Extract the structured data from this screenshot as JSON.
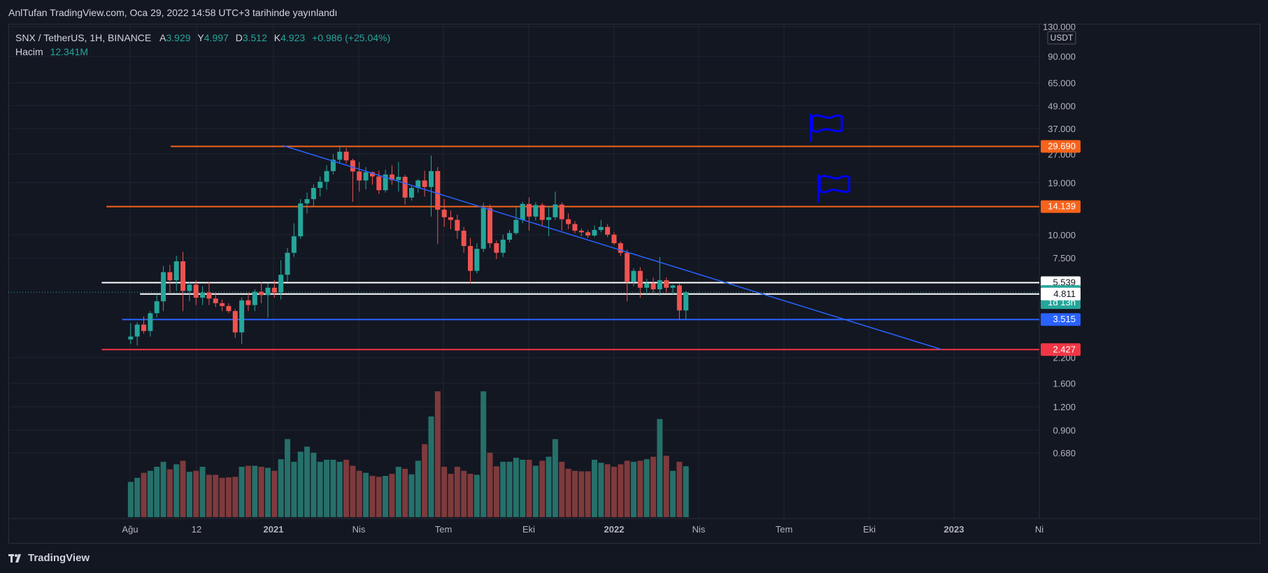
{
  "header": {
    "publish_line": "AnlTufan TradingView.com, Oca 29, 2022 14:58 UTC+3 tarihinde yayınlandı"
  },
  "legend": {
    "symbol": "SNX / TetherUS, 1H, BINANCE",
    "open_label": "A",
    "open": "3.929",
    "high_label": "Y",
    "high": "4.997",
    "low_label": "D",
    "low": "3.512",
    "close_label": "K",
    "close": "4.923",
    "change": "+0.986 (+25.04%)",
    "volume_label": "Hacim",
    "volume": "12.341M"
  },
  "branding": {
    "name": "TradingView"
  },
  "colors": {
    "background": "#131722",
    "grid": "#1f2430",
    "up": "#26a69a",
    "down": "#ef5350",
    "up_volume": "#26706a",
    "down_volume": "#7e3a3c",
    "orange_line": "#f7631b",
    "blue_line": "#2962ff",
    "red_line": "#f23645",
    "white_line": "#ffffff",
    "flag": "#0000ff"
  },
  "icons": [
    "flag-icon",
    "tradingview-logo-icon"
  ],
  "chart_data": {
    "type": "candlestick",
    "symbol": "SNX / TetherUS",
    "interval": "1H",
    "exchange": "BINANCE",
    "currency": "USDT",
    "y_scale": "log",
    "ylim": [
      0.68,
      130
    ],
    "grid": true,
    "price_axis_ticks": [
      "130.000",
      "90.000",
      "65.000",
      "49.000",
      "37.000",
      "27.000",
      "19.000",
      "10.000",
      "7.500",
      "5.539",
      "4.811",
      "2.200",
      "1.600",
      "1.200",
      "0.900",
      "0.680"
    ],
    "time_axis_ticks": [
      "Ağu",
      "12",
      "2021",
      "Nis",
      "Tem",
      "Eki",
      "2022",
      "Nis",
      "Tem",
      "Eki",
      "2023",
      "Ni"
    ],
    "price_labels": [
      {
        "text": "29.690",
        "value": 29.69,
        "color": "#f7631b",
        "text_color": "#ffffff"
      },
      {
        "text": "14.139",
        "value": 14.139,
        "color": "#f7631b",
        "text_color": "#ffffff"
      },
      {
        "text": "5.539",
        "value": 5.539,
        "color": "#ffffff",
        "text_color": "#131722"
      },
      {
        "text": "4.923",
        "value": 4.923,
        "color": "#26a69a",
        "text_color": "#ffffff",
        "sub": "1d 13h"
      },
      {
        "text": "4.811",
        "value": 4.811,
        "color": "#ffffff",
        "text_color": "#131722"
      },
      {
        "text": "3.515",
        "value": 3.515,
        "color": "#2962ff",
        "text_color": "#ffffff"
      },
      {
        "text": "2.427",
        "value": 2.427,
        "color": "#f23645",
        "text_color": "#ffffff"
      }
    ],
    "horizontal_lines": [
      {
        "name": "resistance-29690",
        "value": 29.69,
        "color": "#f7631b",
        "from_date": "2020-09-13"
      },
      {
        "name": "resistance-14139",
        "value": 14.139,
        "color": "#f7631b",
        "from_date": "2020-07-06"
      },
      {
        "name": "level-5539",
        "value": 5.539,
        "color": "#ffffff",
        "from_date": "2020-07-01"
      },
      {
        "name": "level-4811",
        "value": 4.811,
        "color": "#ffffff",
        "from_date": "2020-08-11"
      },
      {
        "name": "support-3515",
        "value": 3.515,
        "color": "#2962ff",
        "from_date": "2020-07-23"
      },
      {
        "name": "support-2427",
        "value": 2.427,
        "color": "#f23645",
        "from_date": "2020-07-01"
      }
    ],
    "trendline": {
      "from": [
        "2021-01-11",
        30.0
      ],
      "to": [
        "2022-12-18",
        2.43
      ],
      "color": "#2962ff"
    },
    "flags": [
      {
        "date": "2022-07-31",
        "value": 38.0
      },
      {
        "date": "2022-08-08",
        "value": 18.0
      }
    ],
    "candles": [
      {
        "date": "2020-08-01",
        "open": 2.75,
        "high": 3.35,
        "low": 2.6,
        "close": 2.85,
        "volume": 0.7
      },
      {
        "date": "2020-08-08",
        "open": 2.85,
        "high": 3.4,
        "low": 2.55,
        "close": 3.3,
        "volume": 0.78
      },
      {
        "date": "2020-08-15",
        "open": 3.3,
        "high": 3.65,
        "low": 2.95,
        "close": 3.05,
        "volume": 0.88
      },
      {
        "date": "2020-08-22",
        "open": 3.05,
        "high": 3.9,
        "low": 2.85,
        "close": 3.8,
        "volume": 0.92
      },
      {
        "date": "2020-08-29",
        "open": 3.8,
        "high": 4.8,
        "low": 3.6,
        "close": 4.4,
        "volume": 1.0
      },
      {
        "date": "2020-09-05",
        "open": 4.4,
        "high": 6.8,
        "low": 3.9,
        "close": 6.3,
        "volume": 1.1
      },
      {
        "date": "2020-09-12",
        "open": 6.3,
        "high": 6.9,
        "low": 4.9,
        "close": 5.7,
        "volume": 0.95
      },
      {
        "date": "2020-09-19",
        "open": 5.7,
        "high": 7.7,
        "low": 5.0,
        "close": 7.2,
        "volume": 1.05
      },
      {
        "date": "2020-09-26",
        "open": 7.2,
        "high": 8.1,
        "low": 3.9,
        "close": 5.0,
        "volume": 1.12
      },
      {
        "date": "2020-10-03",
        "open": 5.0,
        "high": 5.6,
        "low": 4.4,
        "close": 5.4,
        "volume": 0.9
      },
      {
        "date": "2020-10-10",
        "open": 5.4,
        "high": 5.7,
        "low": 4.2,
        "close": 4.6,
        "volume": 0.92
      },
      {
        "date": "2020-10-17",
        "open": 4.6,
        "high": 5.3,
        "low": 4.2,
        "close": 4.9,
        "volume": 1.0
      },
      {
        "date": "2020-10-24",
        "open": 4.9,
        "high": 5.6,
        "low": 4.2,
        "close": 4.55,
        "volume": 0.84
      },
      {
        "date": "2020-10-31",
        "open": 4.55,
        "high": 4.9,
        "low": 4.1,
        "close": 4.3,
        "volume": 0.84
      },
      {
        "date": "2020-11-07",
        "open": 4.3,
        "high": 4.5,
        "low": 3.9,
        "close": 4.15,
        "volume": 0.78
      },
      {
        "date": "2020-11-14",
        "open": 4.15,
        "high": 4.3,
        "low": 3.8,
        "close": 3.9,
        "volume": 0.79
      },
      {
        "date": "2020-11-21",
        "open": 3.9,
        "high": 4.0,
        "low": 2.8,
        "close": 3.0,
        "volume": 0.8
      },
      {
        "date": "2020-11-28",
        "open": 3.0,
        "high": 4.6,
        "low": 2.6,
        "close": 4.45,
        "volume": 1.0
      },
      {
        "date": "2020-12-05",
        "open": 4.45,
        "high": 4.9,
        "low": 3.9,
        "close": 4.2,
        "volume": 1.02
      },
      {
        "date": "2020-12-12",
        "open": 4.2,
        "high": 5.1,
        "low": 3.9,
        "close": 4.95,
        "volume": 1.02
      },
      {
        "date": "2020-12-19",
        "open": 4.95,
        "high": 5.6,
        "low": 4.3,
        "close": 4.75,
        "volume": 1.0
      },
      {
        "date": "2020-12-26",
        "open": 4.75,
        "high": 5.5,
        "low": 3.6,
        "close": 5.2,
        "volume": 0.98
      },
      {
        "date": "2021-01-02",
        "open": 5.2,
        "high": 5.7,
        "low": 4.6,
        "close": 4.9,
        "volume": 0.92
      },
      {
        "date": "2021-01-09",
        "open": 4.9,
        "high": 7.3,
        "low": 4.5,
        "close": 6.1,
        "volume": 1.15
      },
      {
        "date": "2021-01-16",
        "open": 6.1,
        "high": 8.5,
        "low": 5.6,
        "close": 8.0,
        "volume": 1.55
      },
      {
        "date": "2021-01-23",
        "open": 8.0,
        "high": 11.5,
        "low": 7.6,
        "close": 9.8,
        "volume": 1.1
      },
      {
        "date": "2021-01-30",
        "open": 9.8,
        "high": 15.5,
        "low": 9.5,
        "close": 14.7,
        "volume": 1.3
      },
      {
        "date": "2021-02-06",
        "open": 14.7,
        "high": 16.8,
        "low": 13.0,
        "close": 15.5,
        "volume": 1.4
      },
      {
        "date": "2021-02-13",
        "open": 15.5,
        "high": 18.6,
        "low": 14.2,
        "close": 17.8,
        "volume": 1.28
      },
      {
        "date": "2021-02-20",
        "open": 17.8,
        "high": 20.5,
        "low": 16.0,
        "close": 19.2,
        "volume": 1.1
      },
      {
        "date": "2021-02-27",
        "open": 19.2,
        "high": 23.5,
        "low": 17.4,
        "close": 21.9,
        "volume": 1.14
      },
      {
        "date": "2021-03-06",
        "open": 21.9,
        "high": 27.0,
        "low": 21.0,
        "close": 25.2,
        "volume": 1.14
      },
      {
        "date": "2021-03-13",
        "open": 25.2,
        "high": 30.0,
        "low": 24.0,
        "close": 27.8,
        "volume": 1.1
      },
      {
        "date": "2021-03-20",
        "open": 27.8,
        "high": 29.2,
        "low": 24.0,
        "close": 25.0,
        "volume": 1.14
      },
      {
        "date": "2021-03-27",
        "open": 25.0,
        "high": 25.5,
        "low": 15.0,
        "close": 21.8,
        "volume": 1.02
      },
      {
        "date": "2021-04-03",
        "open": 21.8,
        "high": 24.5,
        "low": 17.0,
        "close": 19.5,
        "volume": 0.92
      },
      {
        "date": "2021-04-10",
        "open": 19.5,
        "high": 23.0,
        "low": 17.5,
        "close": 21.6,
        "volume": 0.88
      },
      {
        "date": "2021-04-17",
        "open": 21.6,
        "high": 21.8,
        "low": 18.5,
        "close": 20.5,
        "volume": 0.82
      },
      {
        "date": "2021-04-24",
        "open": 20.5,
        "high": 22.0,
        "low": 16.5,
        "close": 17.3,
        "volume": 0.8
      },
      {
        "date": "2021-05-01",
        "open": 17.3,
        "high": 22.3,
        "low": 16.8,
        "close": 21.0,
        "volume": 0.82
      },
      {
        "date": "2021-05-08",
        "open": 21.0,
        "high": 23.5,
        "low": 18.5,
        "close": 19.6,
        "volume": 0.86
      },
      {
        "date": "2021-05-15",
        "open": 19.6,
        "high": 24.5,
        "low": 17.0,
        "close": 20.4,
        "volume": 1.0
      },
      {
        "date": "2021-05-22",
        "open": 20.4,
        "high": 20.9,
        "low": 14.5,
        "close": 15.8,
        "volume": 0.96
      },
      {
        "date": "2021-05-29",
        "open": 15.8,
        "high": 18.4,
        "low": 15.2,
        "close": 17.8,
        "volume": 0.85
      },
      {
        "date": "2021-06-05",
        "open": 17.8,
        "high": 19.8,
        "low": 16.8,
        "close": 19.5,
        "volume": 1.12
      },
      {
        "date": "2021-06-12",
        "open": 19.5,
        "high": 22.0,
        "low": 16.0,
        "close": 18.0,
        "volume": 1.45
      },
      {
        "date": "2021-06-19",
        "open": 18.0,
        "high": 26.5,
        "low": 12.5,
        "close": 21.9,
        "volume": 2.0
      },
      {
        "date": "2021-06-26",
        "open": 21.9,
        "high": 23.0,
        "low": 8.9,
        "close": 13.6,
        "volume": 2.5
      },
      {
        "date": "2021-07-03",
        "open": 13.6,
        "high": 15.5,
        "low": 11.0,
        "close": 12.4,
        "volume": 1.0
      },
      {
        "date": "2021-07-10",
        "open": 12.4,
        "high": 13.5,
        "low": 10.7,
        "close": 12.0,
        "volume": 0.86
      },
      {
        "date": "2021-07-17",
        "open": 12.0,
        "high": 12.8,
        "low": 9.5,
        "close": 10.5,
        "volume": 1.0
      },
      {
        "date": "2021-07-24",
        "open": 10.5,
        "high": 11.0,
        "low": 8.0,
        "close": 8.7,
        "volume": 0.92
      },
      {
        "date": "2021-07-31",
        "open": 8.7,
        "high": 9.6,
        "low": 5.5,
        "close": 6.4,
        "volume": 0.86
      },
      {
        "date": "2021-08-07",
        "open": 6.4,
        "high": 9.0,
        "low": 6.2,
        "close": 8.4,
        "volume": 0.84
      },
      {
        "date": "2021-08-14",
        "open": 8.4,
        "high": 14.8,
        "low": 8.1,
        "close": 13.9,
        "volume": 2.5
      },
      {
        "date": "2021-08-21",
        "open": 13.9,
        "high": 14.5,
        "low": 8.5,
        "close": 9.0,
        "volume": 1.28
      },
      {
        "date": "2021-08-28",
        "open": 9.0,
        "high": 9.3,
        "low": 7.4,
        "close": 8.0,
        "volume": 1.01
      },
      {
        "date": "2021-09-04",
        "open": 8.0,
        "high": 10.0,
        "low": 7.6,
        "close": 9.4,
        "volume": 1.1
      },
      {
        "date": "2021-09-11",
        "open": 9.4,
        "high": 10.6,
        "low": 9.1,
        "close": 10.2,
        "volume": 1.1
      },
      {
        "date": "2021-09-18",
        "open": 10.2,
        "high": 14.0,
        "low": 10.0,
        "close": 12.0,
        "volume": 1.18
      },
      {
        "date": "2021-09-25",
        "open": 12.0,
        "high": 15.0,
        "low": 11.5,
        "close": 14.6,
        "volume": 1.14
      },
      {
        "date": "2021-10-02",
        "open": 14.6,
        "high": 15.8,
        "low": 10.5,
        "close": 12.5,
        "volume": 1.14
      },
      {
        "date": "2021-10-09",
        "open": 12.5,
        "high": 14.9,
        "low": 11.9,
        "close": 14.4,
        "volume": 1.02
      },
      {
        "date": "2021-10-16",
        "open": 14.4,
        "high": 14.8,
        "low": 11.2,
        "close": 12.0,
        "volume": 1.12
      },
      {
        "date": "2021-10-23",
        "open": 12.0,
        "high": 14.2,
        "low": 9.8,
        "close": 12.4,
        "volume": 1.2
      },
      {
        "date": "2021-10-30",
        "open": 12.4,
        "high": 17.0,
        "low": 12.0,
        "close": 14.5,
        "volume": 1.55
      },
      {
        "date": "2021-11-06",
        "open": 14.5,
        "high": 14.9,
        "low": 10.5,
        "close": 12.1,
        "volume": 1.1
      },
      {
        "date": "2021-11-13",
        "open": 12.1,
        "high": 13.0,
        "low": 10.7,
        "close": 11.4,
        "volume": 0.96
      },
      {
        "date": "2021-11-20",
        "open": 11.4,
        "high": 11.8,
        "low": 10.2,
        "close": 10.5,
        "volume": 0.92
      },
      {
        "date": "2021-11-27",
        "open": 10.5,
        "high": 10.8,
        "low": 9.8,
        "close": 10.3,
        "volume": 0.91
      },
      {
        "date": "2021-12-04",
        "open": 10.3,
        "high": 10.6,
        "low": 9.6,
        "close": 9.9,
        "volume": 0.91
      },
      {
        "date": "2021-12-11",
        "open": 9.9,
        "high": 11.2,
        "low": 9.7,
        "close": 10.6,
        "volume": 1.14
      },
      {
        "date": "2021-12-18",
        "open": 10.6,
        "high": 12.0,
        "low": 10.3,
        "close": 11.0,
        "volume": 1.08
      },
      {
        "date": "2021-12-25",
        "open": 11.0,
        "high": 11.4,
        "low": 9.7,
        "close": 10.0,
        "volume": 1.05
      },
      {
        "date": "2022-01-01",
        "open": 10.0,
        "high": 10.3,
        "low": 8.8,
        "close": 9.0,
        "volume": 1.0
      },
      {
        "date": "2022-01-08",
        "open": 9.0,
        "high": 9.2,
        "low": 7.7,
        "close": 8.0,
        "volume": 1.05
      },
      {
        "date": "2022-01-15",
        "open": 8.0,
        "high": 8.3,
        "low": 4.4,
        "close": 5.6,
        "volume": 1.12
      },
      {
        "date": "2022-01-22",
        "open": 5.6,
        "high": 6.6,
        "low": 5.3,
        "close": 6.4,
        "volume": 1.1
      },
      {
        "date": "2022-01-29",
        "open": 6.4,
        "high": 6.7,
        "low": 4.6,
        "close": 5.2,
        "volume": 1.12
      },
      {
        "date": "2022-02-05",
        "open": 5.2,
        "high": 5.8,
        "low": 4.8,
        "close": 5.5,
        "volume": 1.15
      },
      {
        "date": "2022-02-12",
        "open": 5.5,
        "high": 5.9,
        "low": 4.9,
        "close": 5.1,
        "volume": 1.2
      },
      {
        "date": "2022-02-19",
        "open": 5.1,
        "high": 7.6,
        "low": 4.7,
        "close": 5.7,
        "volume": 1.95
      },
      {
        "date": "2022-02-26",
        "open": 5.7,
        "high": 5.9,
        "low": 4.9,
        "close": 5.2,
        "volume": 1.22
      },
      {
        "date": "2022-03-05",
        "open": 5.2,
        "high": 5.4,
        "low": 4.8,
        "close": 5.35,
        "volume": 0.92
      },
      {
        "date": "2022-03-12",
        "open": 5.35,
        "high": 5.5,
        "low": 3.5,
        "close": 3.93,
        "volume": 1.1
      },
      {
        "date": "2022-03-19",
        "open": 3.93,
        "high": 5.0,
        "low": 3.51,
        "close": 4.92,
        "volume": 1.01
      }
    ]
  }
}
